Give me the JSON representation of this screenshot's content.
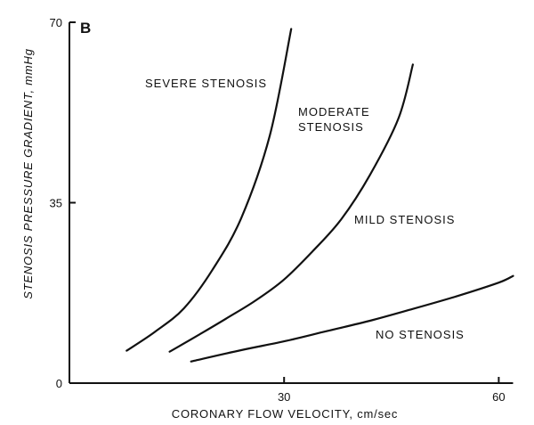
{
  "chart_data": {
    "type": "line",
    "panel_label": "B",
    "xlabel": "CORONARY FLOW VELOCITY, cm/sec",
    "ylabel": "STENOSIS PRESSURE GRADIENT, mmHg",
    "xlim": [
      0,
      62
    ],
    "ylim": [
      0,
      70
    ],
    "xticks": [
      "30",
      "60"
    ],
    "yticks": [
      "0",
      "35",
      "70"
    ],
    "grid": false,
    "series": [
      {
        "name": "SEVERE STENOSIS",
        "x": [
          8,
          12,
          16,
          20,
          24,
          28,
          31
        ],
        "y": [
          6.3,
          10,
          14.5,
          22,
          32,
          48,
          68.7
        ]
      },
      {
        "name": "MODERATE STENOSIS",
        "x": [
          14,
          18,
          22,
          26,
          30,
          34,
          38,
          42,
          46,
          48
        ],
        "y": [
          6.1,
          9.3,
          12.6,
          16,
          20.1,
          25.6,
          31.8,
          40.4,
          51.4,
          61.8
        ]
      },
      {
        "name": "MILD STENOSIS",
        "x": [],
        "y": []
      },
      {
        "name": "NO STENOSIS",
        "x": [
          17,
          24,
          30,
          36,
          42,
          48,
          54,
          60,
          62
        ],
        "y": [
          4.2,
          6.4,
          8.1,
          10.1,
          12.1,
          14.4,
          16.8,
          19.5,
          20.8
        ]
      }
    ]
  }
}
